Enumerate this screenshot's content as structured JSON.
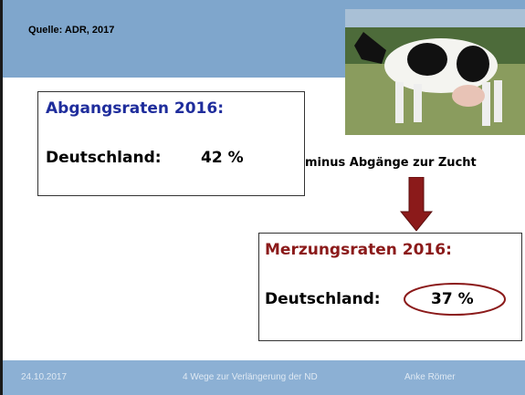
{
  "header": {
    "source": "Quelle: ADR, 2017"
  },
  "box1": {
    "title": "Abgangsraten 2016:",
    "label": "Deutschland:",
    "value": "42 %"
  },
  "note": "minus Abgänge zur Zucht",
  "box2": {
    "title": "Merzungsraten 2016:",
    "label": "Deutschland:",
    "value": "37 %"
  },
  "footer": {
    "date": "24.10.2017",
    "topic": "4 Wege zur Verlängerung der ND",
    "author": "Anke Römer"
  }
}
